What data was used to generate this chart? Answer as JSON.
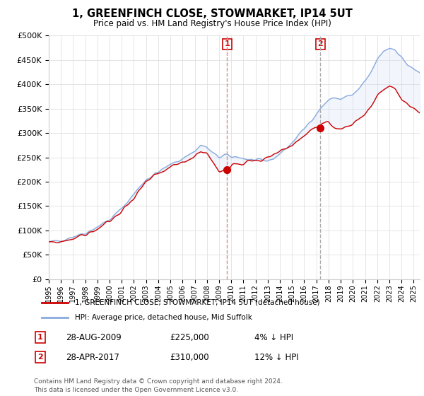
{
  "title": "1, GREENFINCH CLOSE, STOWMARKET, IP14 5UT",
  "subtitle": "Price paid vs. HM Land Registry's House Price Index (HPI)",
  "legend_line1": "1, GREENFINCH CLOSE, STOWMARKET, IP14 5UT (detached house)",
  "legend_line2": "HPI: Average price, detached house, Mid Suffolk",
  "annotation1_date": "28-AUG-2009",
  "annotation1_price": "£225,000",
  "annotation1_hpi": "4% ↓ HPI",
  "annotation2_date": "28-APR-2017",
  "annotation2_price": "£310,000",
  "annotation2_hpi": "12% ↓ HPI",
  "footnote1": "Contains HM Land Registry data © Crown copyright and database right 2024.",
  "footnote2": "This data is licensed under the Open Government Licence v3.0.",
  "price_color": "#cc0000",
  "hpi_color": "#88aadd",
  "fill_color": "#ccddf5",
  "vline_color": "#dd8888",
  "annotation_box_color": "#cc0000",
  "ylim_min": 0,
  "ylim_max": 500000,
  "yticks": [
    0,
    50000,
    100000,
    150000,
    200000,
    250000,
    300000,
    350000,
    400000,
    450000,
    500000
  ],
  "sale1_x": 2009.667,
  "sale1_y": 225000,
  "sale2_x": 2017.33,
  "sale2_y": 310000,
  "vline1_x": 2009.667,
  "vline2_x": 2017.33,
  "xmin": 1995.0,
  "xmax": 2025.5
}
